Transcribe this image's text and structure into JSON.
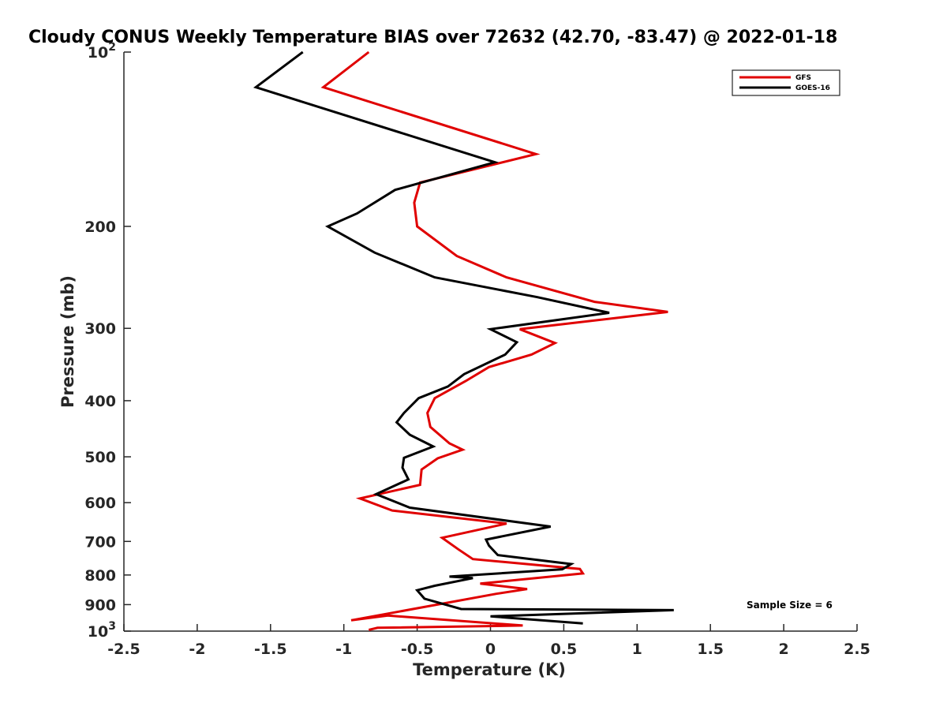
{
  "chart_data": {
    "type": "line",
    "title": "Cloudy CONUS Weekly Temperature BIAS over 72632 (42.70, -83.47) @ 2022-01-18",
    "xlabel": "Temperature (K)",
    "ylabel": "Pressure (mb)",
    "xlim": [
      -2.5,
      2.5
    ],
    "ylim": [
      100,
      1000
    ],
    "yscale": "log",
    "y_reversed": true,
    "x_ticks": [
      "-2.5",
      "-2",
      "-1.5",
      "-1",
      "-0.5",
      "0",
      "0.5",
      "1",
      "1.5",
      "2",
      "2.5"
    ],
    "y_ticks": [
      {
        "value": 100,
        "label": "10",
        "exp": "2"
      },
      {
        "value": 200,
        "label": "200"
      },
      {
        "value": 300,
        "label": "300"
      },
      {
        "value": 400,
        "label": "400"
      },
      {
        "value": 500,
        "label": "500"
      },
      {
        "value": 600,
        "label": "600"
      },
      {
        "value": 700,
        "label": "700"
      },
      {
        "value": 800,
        "label": "800"
      },
      {
        "value": 900,
        "label": "900"
      },
      {
        "value": 1000,
        "label": "10",
        "exp": "3"
      }
    ],
    "grid": false,
    "legend_position": "top-right",
    "annotation": "Sample Size = 6",
    "series": [
      {
        "name": "GFS",
        "color": "#e00000",
        "points": [
          [
            -0.83,
            100
          ],
          [
            -1.14,
            115
          ],
          [
            0.31,
            150
          ],
          [
            -0.48,
            168
          ],
          [
            -0.52,
            182
          ],
          [
            -0.5,
            200
          ],
          [
            -0.23,
            225
          ],
          [
            0.11,
            245
          ],
          [
            0.71,
            270
          ],
          [
            1.21,
            281
          ],
          [
            0.2,
            301
          ],
          [
            0.44,
            318
          ],
          [
            0.28,
            333
          ],
          [
            -0.01,
            350
          ],
          [
            -0.17,
            370
          ],
          [
            -0.38,
            396
          ],
          [
            -0.43,
            420
          ],
          [
            -0.41,
            444
          ],
          [
            -0.28,
            474
          ],
          [
            -0.19,
            486
          ],
          [
            -0.36,
            503
          ],
          [
            -0.47,
            526
          ],
          [
            -0.48,
            559
          ],
          [
            -0.89,
            590
          ],
          [
            -0.67,
            619
          ],
          [
            0.11,
            652
          ],
          [
            -0.33,
            690
          ],
          [
            -0.22,
            722
          ],
          [
            -0.12,
            751
          ],
          [
            0.61,
            781
          ],
          [
            0.63,
            795
          ],
          [
            -0.07,
            828
          ],
          [
            0.25,
            846
          ],
          [
            0.04,
            862
          ],
          [
            -0.95,
            958
          ],
          [
            -0.7,
            940
          ],
          [
            0.22,
            978
          ],
          [
            -0.77,
            987
          ],
          [
            -0.83,
            995
          ]
        ]
      },
      {
        "name": "GOES-16",
        "color": "#000000",
        "points": [
          [
            -1.28,
            100
          ],
          [
            -1.6,
            115
          ],
          [
            0.03,
            155
          ],
          [
            -0.65,
            173
          ],
          [
            -0.91,
            190
          ],
          [
            -1.11,
            200
          ],
          [
            -0.79,
            222
          ],
          [
            -0.38,
            245
          ],
          [
            0.32,
            265
          ],
          [
            0.81,
            282
          ],
          [
            0.0,
            301
          ],
          [
            0.18,
            317
          ],
          [
            0.1,
            333
          ],
          [
            -0.18,
            360
          ],
          [
            -0.29,
            378
          ],
          [
            -0.49,
            396
          ],
          [
            -0.59,
            420
          ],
          [
            -0.64,
            436
          ],
          [
            -0.55,
            458
          ],
          [
            -0.39,
            480
          ],
          [
            -0.59,
            502
          ],
          [
            -0.6,
            522
          ],
          [
            -0.56,
            547
          ],
          [
            -0.78,
            580
          ],
          [
            -0.55,
            612
          ],
          [
            0.41,
            660
          ],
          [
            -0.03,
            695
          ],
          [
            -0.01,
            712
          ],
          [
            0.05,
            739
          ],
          [
            0.55,
            766
          ],
          [
            0.49,
            782
          ],
          [
            -0.28,
            805
          ],
          [
            -0.12,
            810
          ],
          [
            -0.38,
            835
          ],
          [
            -0.5,
            850
          ],
          [
            -0.45,
            879
          ],
          [
            -0.2,
            916
          ],
          [
            1.25,
            920
          ],
          [
            0.0,
            943
          ],
          [
            0.63,
            970
          ]
        ]
      }
    ]
  }
}
